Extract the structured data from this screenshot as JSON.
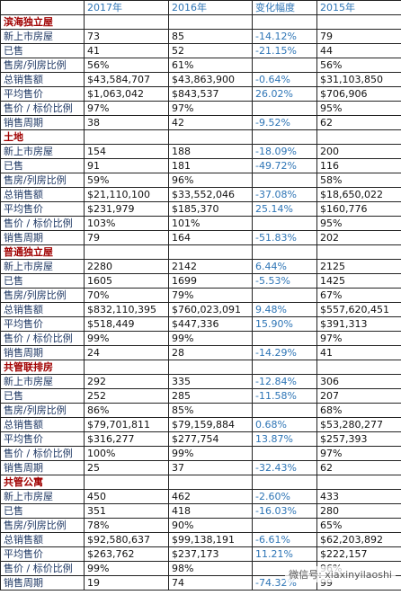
{
  "table": {
    "header": [
      null,
      "2017年",
      "2016年",
      "变化幅度",
      "2015年"
    ],
    "sections": [
      {
        "title": "滨海独立屋",
        "rows": [
          [
            "新上市房屋",
            "73",
            "85",
            "-14.12%",
            "79"
          ],
          [
            "已售",
            "41",
            "52",
            "-21.15%",
            "44"
          ],
          [
            "售房/列房比例",
            "56%",
            "61%",
            null,
            "56%"
          ],
          [
            "总销售额",
            "$43,584,707",
            "$43,863,900",
            "-0.64%",
            "$31,103,850"
          ],
          [
            "平均售价",
            "$1,063,042",
            "$843,537",
            "26.02%",
            "$706,906"
          ],
          [
            "售价 / 标价比例",
            "97%",
            "97%",
            null,
            "95%"
          ],
          [
            "销售周期",
            "38",
            "42",
            "-9.52%",
            "62"
          ]
        ]
      },
      {
        "title": "土地",
        "rows": [
          [
            "新上市房屋",
            "154",
            "188",
            "-18.09%",
            "200"
          ],
          [
            "已售",
            "91",
            "181",
            "-49.72%",
            "116"
          ],
          [
            "售房/列房比例",
            "59%",
            "96%",
            null,
            "58%"
          ],
          [
            "总销售额",
            "$21,110,100",
            "$33,552,046",
            "-37.08%",
            "$18,650,022"
          ],
          [
            "平均售价",
            "$231,979",
            "$185,370",
            "25.14%",
            "$160,776"
          ],
          [
            "售价 / 标价比例",
            "103%",
            "101%",
            null,
            "95%"
          ],
          [
            "销售周期",
            "79",
            "164",
            "-51.83%",
            "202"
          ]
        ]
      },
      {
        "title": "普通独立屋",
        "rows": [
          [
            "新上市房屋",
            "2280",
            "2142",
            "6.44%",
            "2125"
          ],
          [
            "已售",
            "1605",
            "1699",
            "-5.53%",
            "1425"
          ],
          [
            "售房/列房比例",
            "70%",
            "79%",
            null,
            "67%"
          ],
          [
            "总销售额",
            "$832,110,395",
            "$760,023,091",
            "9.48%",
            "$557,620,451"
          ],
          [
            "平均售价",
            "$518,449",
            "$447,336",
            "15.90%",
            "$391,313"
          ],
          [
            "售价 / 标价比例",
            "99%",
            "99%",
            null,
            "97%"
          ],
          [
            "销售周期",
            "24",
            "28",
            "-14.29%",
            "41"
          ]
        ]
      },
      {
        "title": "共管联排房",
        "rows": [
          [
            "新上市房屋",
            "292",
            "335",
            "-12.84%",
            "306"
          ],
          [
            "已售",
            "252",
            "285",
            "-11.58%",
            "207"
          ],
          [
            "售房/列房比例",
            "86%",
            "85%",
            null,
            "68%"
          ],
          [
            "总销售额",
            "$79,701,811",
            "$79,159,884",
            "0.68%",
            "$53,280,277"
          ],
          [
            "平均售价",
            "$316,277",
            "$277,754",
            "13.87%",
            "$257,393"
          ],
          [
            "售价 / 标价比例",
            "100%",
            "99%",
            null,
            "97%"
          ],
          [
            "销售周期",
            "25",
            "37",
            "-32.43%",
            "62"
          ]
        ]
      },
      {
        "title": "共管公寓",
        "rows": [
          [
            "新上市房屋",
            "450",
            "462",
            "-2.60%",
            "433"
          ],
          [
            "已售",
            "351",
            "418",
            "-16.03%",
            "280"
          ],
          [
            "售房/列房比例",
            "78%",
            "90%",
            null,
            "65%"
          ],
          [
            "总销售额",
            "$92,580,637",
            "$99,138,191",
            "-6.61%",
            "$62,203,892"
          ],
          [
            "平均售价",
            "$263,762",
            "$237,173",
            "11.21%",
            "$222,157"
          ],
          [
            "售价 / 标价比例",
            "99%",
            "98%",
            null,
            "96%"
          ],
          [
            "销售周期",
            "19",
            "74",
            "-74.32%",
            "99"
          ]
        ]
      }
    ]
  },
  "watermark": "微信号: xiaxinyilaoshi"
}
